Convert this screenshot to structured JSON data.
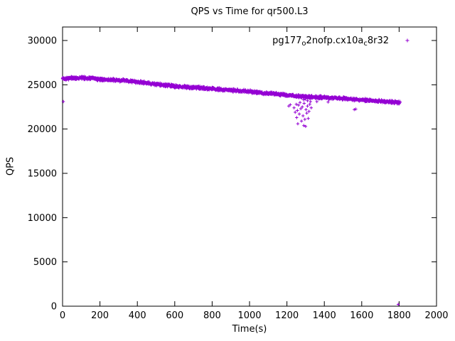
{
  "chart_data": {
    "type": "scatter",
    "title": "QPS vs Time for qr500.L3",
    "xlabel": "Time(s)",
    "ylabel": "QPS",
    "xlim": [
      0,
      2000
    ],
    "ylim": [
      0,
      30000
    ],
    "xticks": [
      0,
      200,
      400,
      600,
      800,
      1000,
      1200,
      1400,
      1600,
      1800,
      2000
    ],
    "yticks": [
      0,
      5000,
      10000,
      15000,
      20000,
      25000,
      30000
    ],
    "grid": false,
    "legend_position": "top-right",
    "series": [
      {
        "name": "pg177_o2nofp.cx10a_c8r32",
        "name_segments": [
          {
            "t": "pg177"
          },
          {
            "t": "o",
            "sub": true
          },
          {
            "t": "2nofp.cx10a"
          },
          {
            "t": "c",
            "sub": true
          },
          {
            "t": "8r32"
          }
        ],
        "color": "#9400d3",
        "marker": "plus",
        "n_points": 1700,
        "x_range": [
          0,
          1805
        ],
        "noise": 130,
        "trend": [
          [
            0,
            25700
          ],
          [
            50,
            25750
          ],
          [
            100,
            25780
          ],
          [
            150,
            25750
          ],
          [
            200,
            25620
          ],
          [
            250,
            25560
          ],
          [
            300,
            25500
          ],
          [
            350,
            25450
          ],
          [
            400,
            25320
          ],
          [
            450,
            25200
          ],
          [
            500,
            25050
          ],
          [
            550,
            24950
          ],
          [
            600,
            24850
          ],
          [
            650,
            24760
          ],
          [
            700,
            24700
          ],
          [
            750,
            24620
          ],
          [
            800,
            24550
          ],
          [
            850,
            24460
          ],
          [
            900,
            24400
          ],
          [
            950,
            24320
          ],
          [
            1000,
            24250
          ],
          [
            1050,
            24120
          ],
          [
            1100,
            24020
          ],
          [
            1150,
            23950
          ],
          [
            1200,
            23850
          ],
          [
            1250,
            23720
          ],
          [
            1300,
            23660
          ],
          [
            1350,
            23600
          ],
          [
            1400,
            23560
          ],
          [
            1450,
            23510
          ],
          [
            1500,
            23450
          ],
          [
            1550,
            23360
          ],
          [
            1600,
            23300
          ],
          [
            1650,
            23220
          ],
          [
            1700,
            23150
          ],
          [
            1750,
            23060
          ],
          [
            1800,
            23000
          ]
        ],
        "extra_points": [
          [
            4,
            23100
          ],
          [
            1210,
            22600
          ],
          [
            1218,
            22750
          ],
          [
            1238,
            22400
          ],
          [
            1244,
            21900
          ],
          [
            1250,
            22800
          ],
          [
            1252,
            21300
          ],
          [
            1256,
            22100
          ],
          [
            1258,
            20600
          ],
          [
            1262,
            22700
          ],
          [
            1266,
            21700
          ],
          [
            1270,
            23000
          ],
          [
            1274,
            22300
          ],
          [
            1278,
            20900
          ],
          [
            1282,
            22500
          ],
          [
            1286,
            21500
          ],
          [
            1290,
            20400
          ],
          [
            1292,
            22900
          ],
          [
            1296,
            21100
          ],
          [
            1300,
            20300
          ],
          [
            1302,
            22200
          ],
          [
            1306,
            21800
          ],
          [
            1310,
            22600
          ],
          [
            1314,
            21200
          ],
          [
            1318,
            22000
          ],
          [
            1322,
            22800
          ],
          [
            1326,
            23100
          ],
          [
            1330,
            22400
          ],
          [
            1280,
            23500
          ],
          [
            1290,
            23300
          ],
          [
            1300,
            23400
          ],
          [
            1310,
            23200
          ],
          [
            1360,
            23100
          ],
          [
            1420,
            23050
          ],
          [
            1560,
            22200
          ],
          [
            1568,
            22250
          ],
          [
            1795,
            200
          ]
        ]
      }
    ]
  }
}
